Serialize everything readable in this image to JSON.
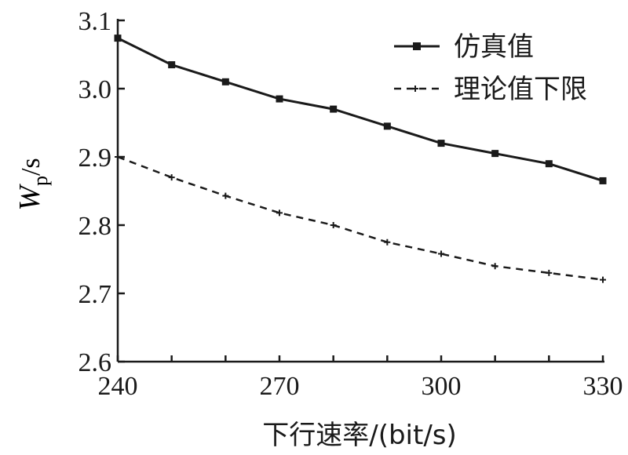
{
  "chart_data": {
    "type": "line",
    "x": [
      240,
      250,
      260,
      270,
      280,
      290,
      300,
      310,
      320,
      330
    ],
    "series": [
      {
        "name": "仿真值",
        "values": [
          3.074,
          3.035,
          3.01,
          2.985,
          2.97,
          2.945,
          2.92,
          2.905,
          2.89,
          2.865
        ],
        "line_style": "solid",
        "marker": "square",
        "color": "#1a1a1a"
      },
      {
        "name": "理论值下限",
        "values": [
          2.9,
          2.87,
          2.843,
          2.818,
          2.8,
          2.775,
          2.758,
          2.74,
          2.73,
          2.72
        ],
        "line_style": "dashed",
        "marker": "plus",
        "color": "#1a1a1a"
      }
    ],
    "xlim": [
      240,
      330
    ],
    "ylim": [
      2.6,
      3.1
    ],
    "x_ticks": [
      "240",
      "270",
      "300",
      "330"
    ],
    "x_tick_values": [
      240,
      270,
      300,
      330
    ],
    "y_ticks": [
      "2.6",
      "2.7",
      "2.8",
      "2.9",
      "3.0",
      "3.1"
    ],
    "y_tick_values": [
      2.6,
      2.7,
      2.8,
      2.9,
      3.0,
      3.1
    ],
    "xlabel": "下行速率/(bit/s)",
    "ylabel_main": "W",
    "ylabel_sub": "p",
    "ylabel_unit": "/s",
    "grid": false,
    "legend_position": "top-right"
  }
}
